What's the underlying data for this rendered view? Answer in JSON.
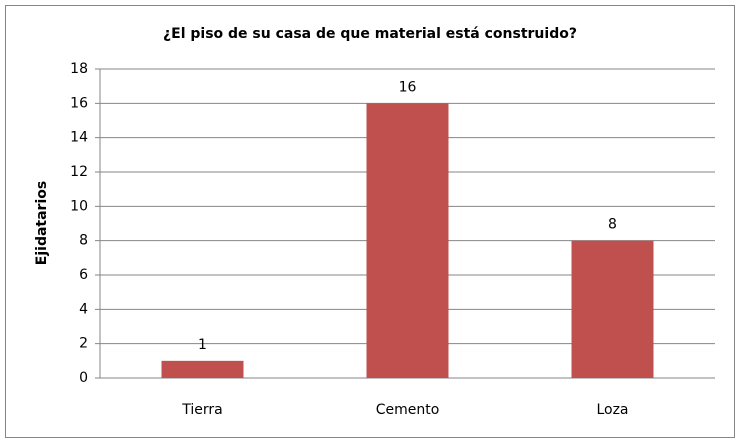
{
  "chart_data": {
    "type": "bar",
    "title": "¿El piso de su casa de que material está construido?",
    "y_label": "Ejidatarios",
    "categories": [
      "Tierra",
      "Cemento",
      "Loza"
    ],
    "values": [
      1,
      16,
      8
    ],
    "color": "#c0504d",
    "ylim": [
      0,
      18
    ],
    "yticks": [
      0,
      2,
      4,
      6,
      8,
      10,
      12,
      14,
      16,
      18
    ],
    "grid": true,
    "data_labels": true
  }
}
